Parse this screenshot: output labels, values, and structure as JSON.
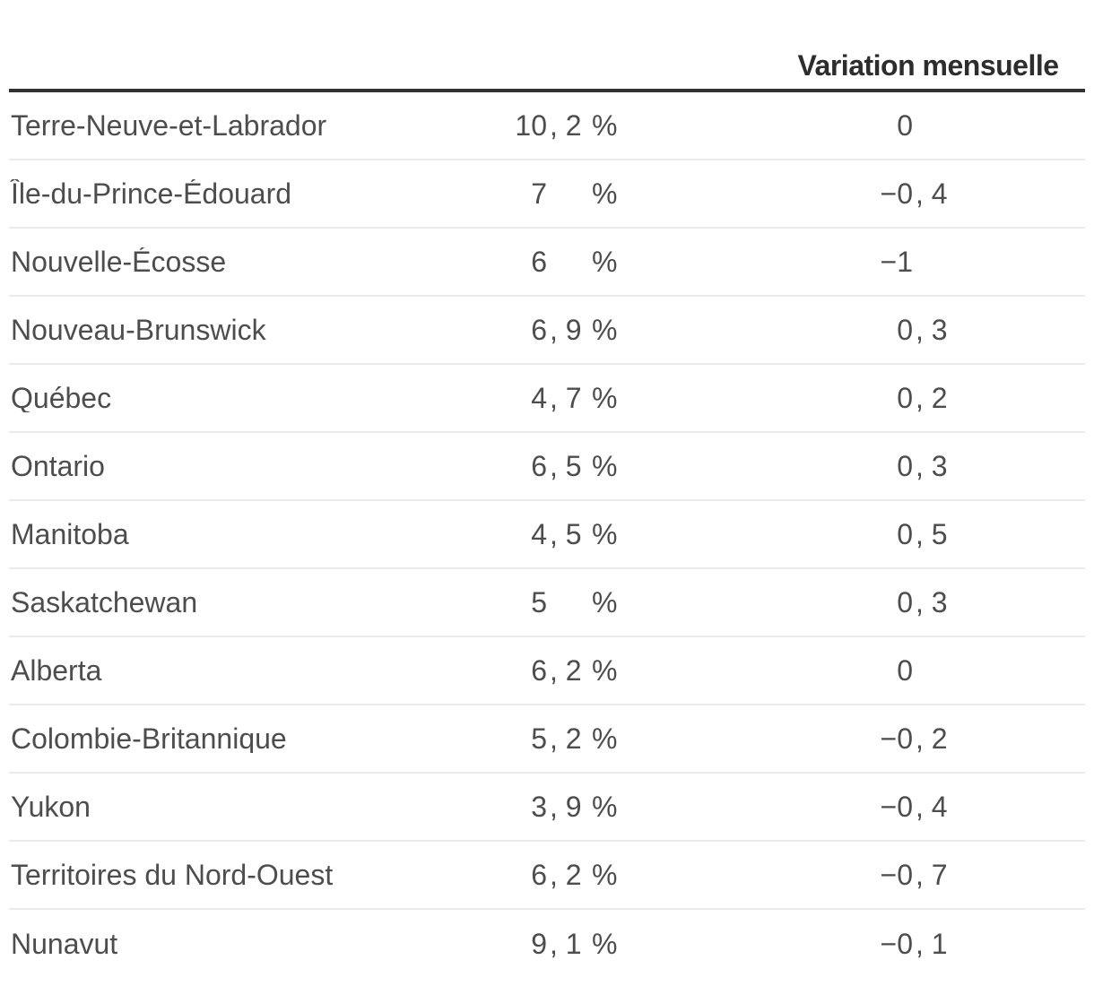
{
  "chart_data": {
    "type": "table",
    "columns": [
      "",
      "",
      "Variation mensuelle"
    ],
    "unit": "%",
    "rows": [
      {
        "region": "Terre-Neuve-et-Labrador",
        "value_display": "10,2",
        "value": 10.2,
        "variation_display": "0",
        "variation": 0
      },
      {
        "region": "Île-du-Prince-Édouard",
        "value_display": "7",
        "value": 7,
        "variation_display": "−0,4",
        "variation": -0.4
      },
      {
        "region": "Nouvelle-Écosse",
        "value_display": "6",
        "value": 6,
        "variation_display": "−1",
        "variation": -1
      },
      {
        "region": "Nouveau-Brunswick",
        "value_display": "6,9",
        "value": 6.9,
        "variation_display": "0,3",
        "variation": 0.3
      },
      {
        "region": "Québec",
        "value_display": "4,7",
        "value": 4.7,
        "variation_display": "0,2",
        "variation": 0.2
      },
      {
        "region": "Ontario",
        "value_display": "6,5",
        "value": 6.5,
        "variation_display": "0,3",
        "variation": 0.3
      },
      {
        "region": "Manitoba",
        "value_display": "4,5",
        "value": 4.5,
        "variation_display": "0,5",
        "variation": 0.5
      },
      {
        "region": "Saskatchewan",
        "value_display": "5",
        "value": 5,
        "variation_display": "0,3",
        "variation": 0.3
      },
      {
        "region": "Alberta",
        "value_display": "6,2",
        "value": 6.2,
        "variation_display": "0",
        "variation": 0
      },
      {
        "region": "Colombie-Britannique",
        "value_display": "5,2",
        "value": 5.2,
        "variation_display": "−0,2",
        "variation": -0.2
      },
      {
        "region": "Yukon",
        "value_display": "3,9",
        "value": 3.9,
        "variation_display": "−0,4",
        "variation": -0.4
      },
      {
        "region": "Territoires du Nord-Ouest",
        "value_display": "6,2",
        "value": 6.2,
        "variation_display": "−0,7",
        "variation": -0.7
      },
      {
        "region": "Nunavut",
        "value_display": "9,1",
        "value": 9.1,
        "variation_display": "−0,1",
        "variation": -0.1
      }
    ]
  },
  "colors": {
    "header_text": "#2d2d2d",
    "header_rule": "#323232",
    "body_text": "#4d4d4d",
    "row_separator": "#ececec"
  }
}
